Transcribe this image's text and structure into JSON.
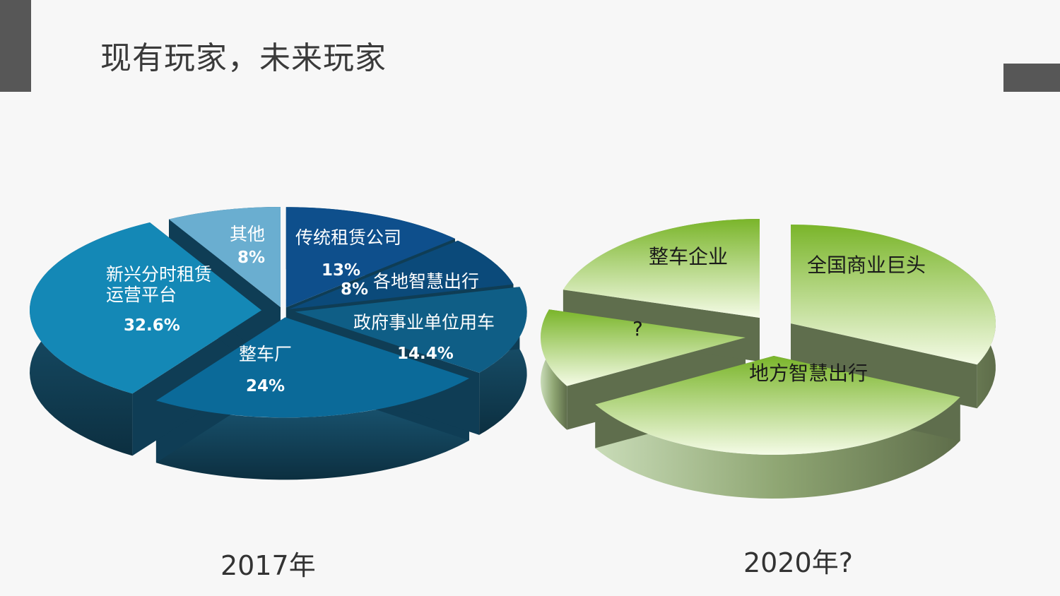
{
  "slide": {
    "title": "现有玩家，未来玩家",
    "accent_color": "#575757"
  },
  "chart_data": [
    {
      "type": "pie",
      "caption": "2017年",
      "style": "3d-exploded",
      "slices": [
        {
          "name": "传统租赁公司",
          "value": 13,
          "value_label": "13%",
          "color": "#0e4f8c"
        },
        {
          "name": "各地智慧出行",
          "value": 8,
          "value_label": "8%",
          "color": "#0b4a7a"
        },
        {
          "name": "政府事业单位用车",
          "value": 14.4,
          "value_label": "14.4%",
          "color": "#0f5e86"
        },
        {
          "name": "整车厂",
          "value": 24,
          "value_label": "24%",
          "color": "#0b6a99"
        },
        {
          "name": "新兴分时租赁\n运营平台",
          "value": 32.6,
          "value_label": "32.6%",
          "color": "#1488b6"
        },
        {
          "name": "其他",
          "value": 8,
          "value_label": "8%",
          "color": "#6aaed0"
        }
      ]
    },
    {
      "type": "pie",
      "caption": "2020年?",
      "style": "3d-exploded",
      "slices": [
        {
          "name": "全国商业巨头",
          "color": "#8cc63f"
        },
        {
          "name": "地方智慧出行",
          "color": "#8cc63f"
        },
        {
          "name": "?",
          "color": "#8cc63f"
        },
        {
          "name": "整车企业",
          "color": "#8cc63f"
        }
      ]
    }
  ]
}
